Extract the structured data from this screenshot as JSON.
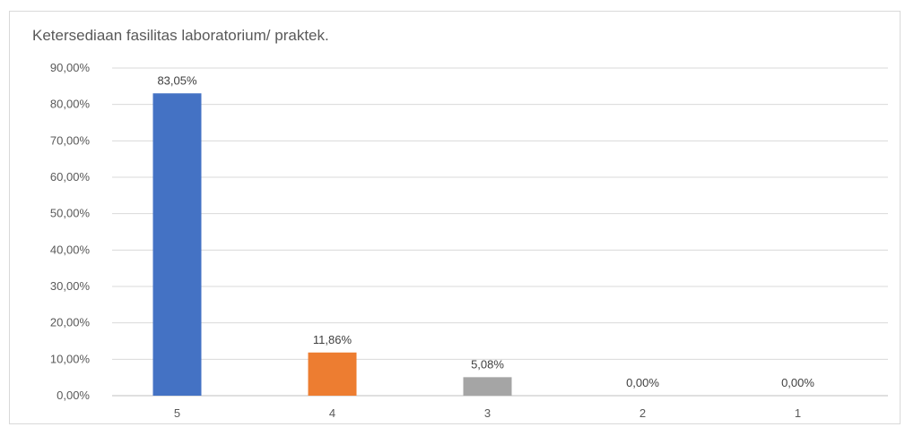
{
  "chart_data": {
    "type": "bar",
    "title": "Ketersediaan fasilitas laboratorium/ praktek.",
    "xlabel": "",
    "ylabel": "",
    "categories": [
      "5",
      "4",
      "3",
      "2",
      "1"
    ],
    "values": [
      83.05,
      11.86,
      5.08,
      0.0,
      0.0
    ],
    "data_labels": [
      "83,05%",
      "11,86%",
      "5,08%",
      "0,00%",
      "0,00%"
    ],
    "colors": [
      "#4472C4",
      "#ED7D31",
      "#A5A5A5",
      "#FFC000",
      "#5B9BD5"
    ],
    "ylim": [
      0,
      90
    ],
    "yticks": [
      0,
      10,
      20,
      30,
      40,
      50,
      60,
      70,
      80,
      90
    ],
    "ytick_labels": [
      "0,00%",
      "10,00%",
      "20,00%",
      "30,00%",
      "40,00%",
      "50,00%",
      "60,00%",
      "70,00%",
      "80,00%",
      "90,00%"
    ],
    "grid": true,
    "legend": "none"
  }
}
